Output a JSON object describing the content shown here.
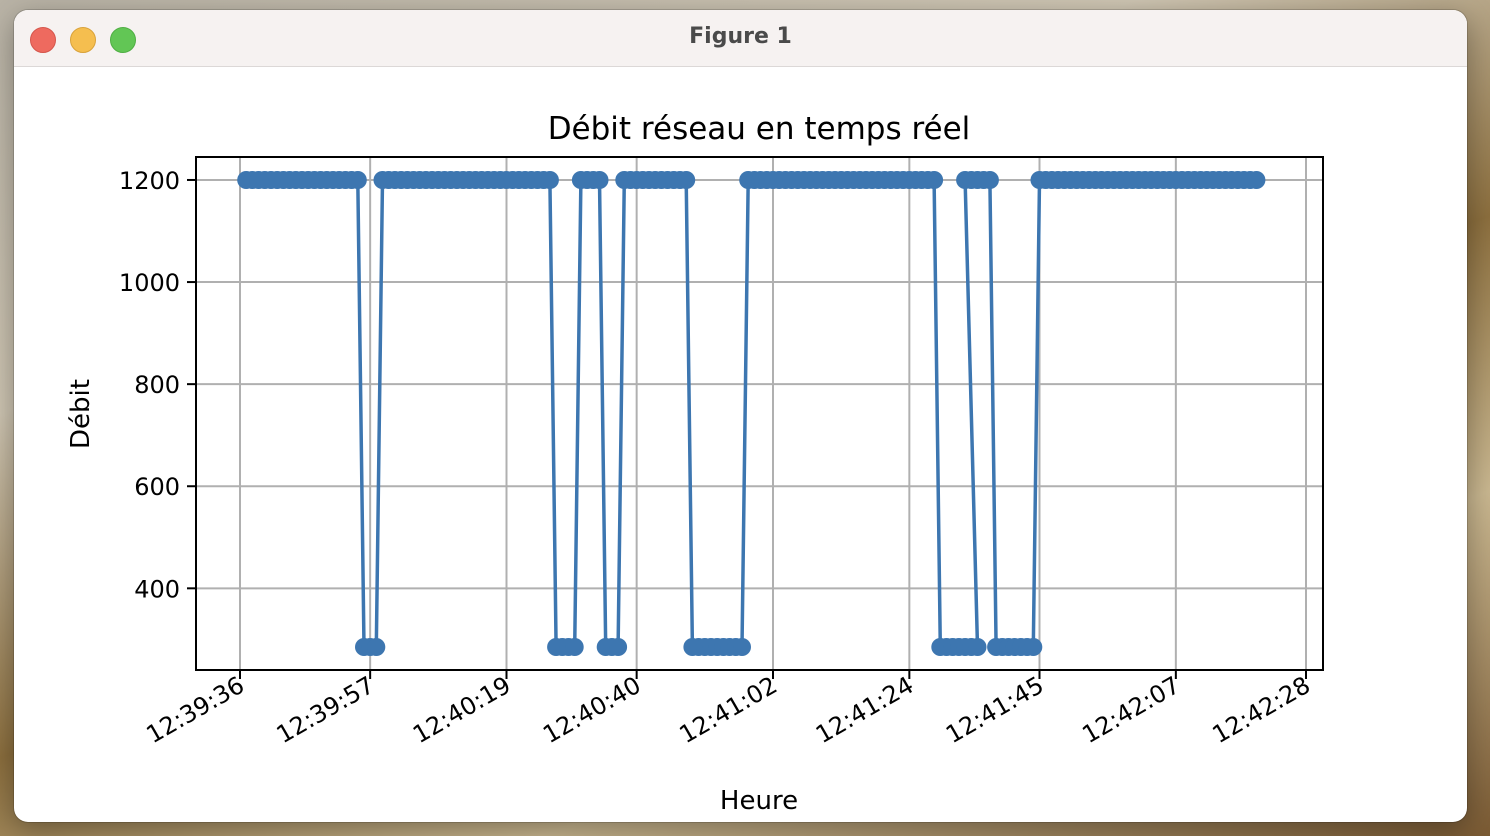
{
  "window": {
    "title": "Figure 1",
    "controls": [
      "close-button",
      "minimize-button",
      "zoom-button"
    ]
  },
  "chart_data": {
    "type": "line",
    "title": "Débit réseau en temps réel",
    "xlabel": "Heure",
    "ylabel": "Débit",
    "x_tick_labels": [
      "12:39:36",
      "12:39:57",
      "12:40:19",
      "12:40:40",
      "12:41:02",
      "12:41:24",
      "12:41:45",
      "12:42:07",
      "12:42:28"
    ],
    "y_tick_labels": [
      "400",
      "600",
      "800",
      "1000",
      "1200"
    ],
    "ylim": [
      240,
      1245
    ],
    "grid": true,
    "line_color": "#3d76b0",
    "marker": "circle",
    "segments": [
      {
        "from": "12:39:37",
        "to": "12:39:55",
        "value": 1200
      },
      {
        "from": "12:39:56",
        "to": "12:39:58",
        "value": 285
      },
      {
        "from": "12:39:59",
        "to": "12:40:26",
        "value": 1200
      },
      {
        "from": "12:40:27",
        "to": "12:40:30",
        "value": 285
      },
      {
        "from": "12:40:31",
        "to": "12:40:34",
        "value": 1200
      },
      {
        "from": "12:40:35",
        "to": "12:40:37",
        "value": 285
      },
      {
        "from": "12:40:38",
        "to": "12:40:48",
        "value": 1200
      },
      {
        "from": "12:40:49",
        "to": "12:40:57",
        "value": 285
      },
      {
        "from": "12:40:58",
        "to": "12:41:28",
        "value": 1200
      },
      {
        "from": "12:41:29",
        "to": "12:41:35",
        "value": 285
      },
      {
        "from": "12:41:33",
        "to": "12:41:37",
        "value": 1200
      },
      {
        "from": "12:41:38",
        "to": "12:41:44",
        "value": 285
      },
      {
        "from": "12:41:45",
        "to": "12:42:20",
        "value": 1200
      }
    ]
  }
}
